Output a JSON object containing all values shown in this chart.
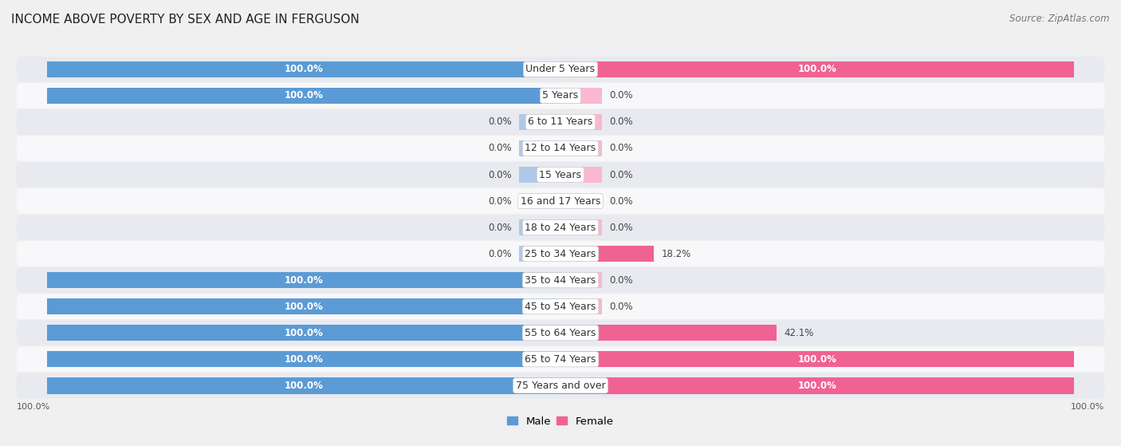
{
  "title": "INCOME ABOVE POVERTY BY SEX AND AGE IN FERGUSON",
  "source": "Source: ZipAtlas.com",
  "categories": [
    "Under 5 Years",
    "5 Years",
    "6 to 11 Years",
    "12 to 14 Years",
    "15 Years",
    "16 and 17 Years",
    "18 to 24 Years",
    "25 to 34 Years",
    "35 to 44 Years",
    "45 to 54 Years",
    "55 to 64 Years",
    "65 to 74 Years",
    "75 Years and over"
  ],
  "male_values": [
    100.0,
    100.0,
    0.0,
    0.0,
    0.0,
    0.0,
    0.0,
    0.0,
    100.0,
    100.0,
    100.0,
    100.0,
    100.0
  ],
  "female_values": [
    100.0,
    0.0,
    0.0,
    0.0,
    0.0,
    0.0,
    0.0,
    18.2,
    0.0,
    0.0,
    42.1,
    100.0,
    100.0
  ],
  "male_color": "#5b9bd5",
  "male_color_light": "#aec9e8",
  "female_color": "#f06292",
  "female_color_light": "#f9b8cf",
  "bar_height": 0.62,
  "background_color": "#f0f0f0",
  "row_color_odd": "#e8eaf0",
  "row_color_even": "#f8f8fa",
  "max_val": 100.0,
  "legend_male_color": "#5b9bd5",
  "legend_female_color": "#f06292",
  "zero_stub": 8.0,
  "label_fontsize": 8.5,
  "cat_fontsize": 9.0
}
